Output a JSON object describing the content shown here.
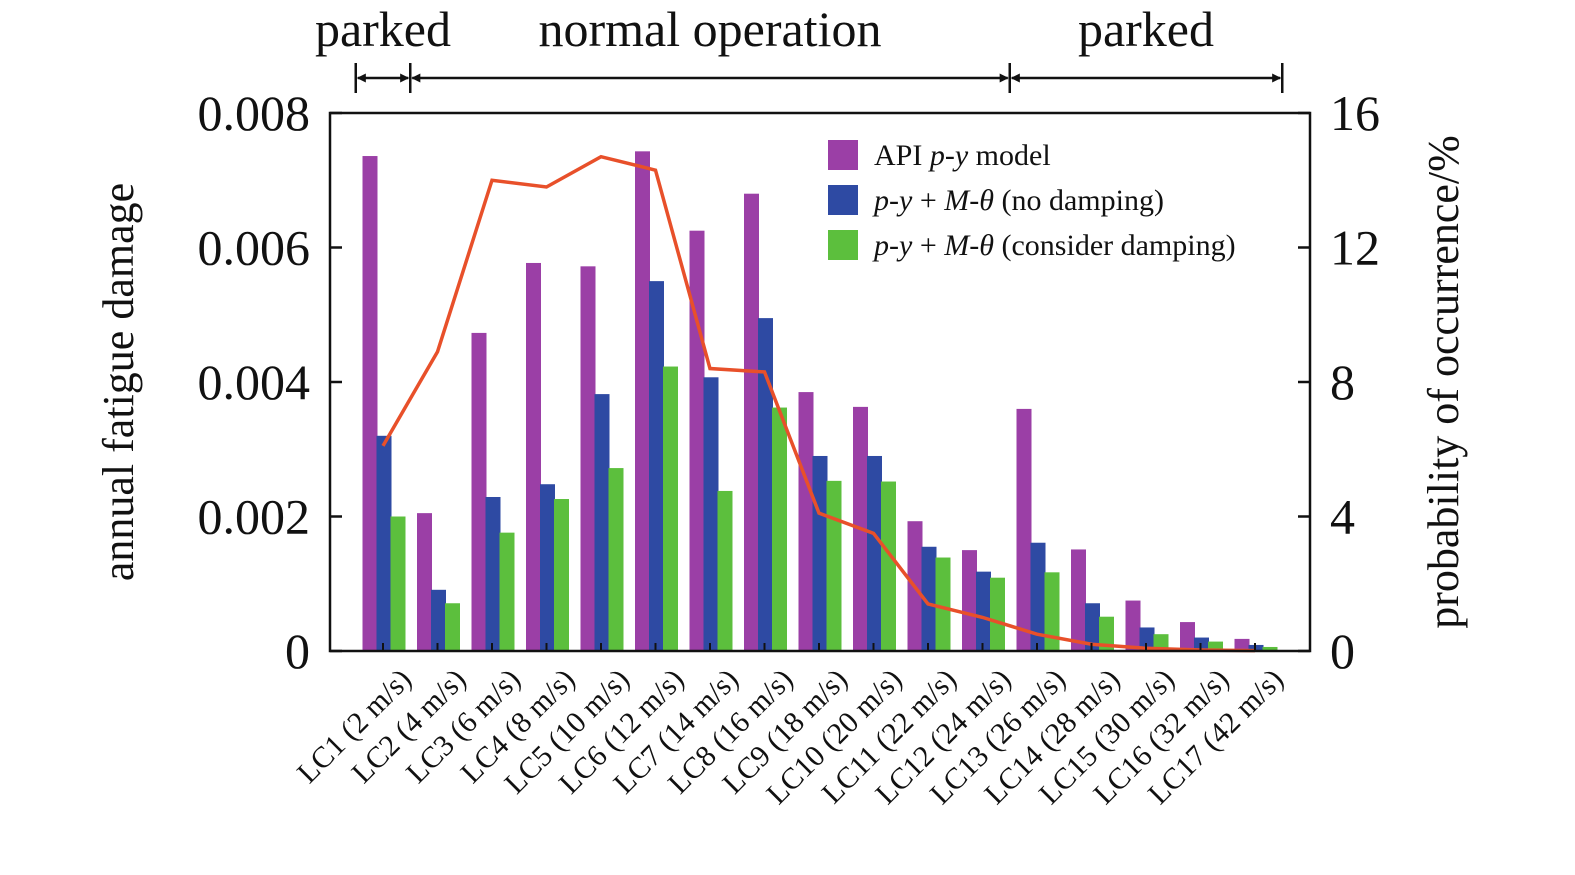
{
  "chart_data": {
    "type": "bar",
    "title": "",
    "regions": [
      {
        "label": "parked",
        "from": 1,
        "to": 2
      },
      {
        "label": "normal operation",
        "from": 2,
        "to": 13
      },
      {
        "label": "parked",
        "from": 13,
        "to": 18
      }
    ],
    "categories": [
      "LC1 (2 m/s)",
      "LC2 (4 m/s)",
      "LC3 (6 m/s)",
      "LC4 (8 m/s)",
      "LC5 (10 m/s)",
      "LC6 (12 m/s)",
      "LC7 (14 m/s)",
      "LC8 (16 m/s)",
      "LC9 (18 m/s)",
      "LC10 (20 m/s)",
      "LC11 (22 m/s)",
      "LC12 (24 m/s)",
      "LC13 (26 m/s)",
      "LC14 (28 m/s)",
      "LC15 (30 m/s)",
      "LC16 (32 m/s)",
      "LC17 (42 m/s)"
    ],
    "ylabel": "annual fatigue damage",
    "ylim": [
      0,
      0.008
    ],
    "yticks": [
      "0",
      "0.002",
      "0.004",
      "0.006",
      "0.008"
    ],
    "y2label": "probability of occurrence/%",
    "y2lim": [
      0,
      16
    ],
    "y2ticks": [
      "0",
      "4",
      "8",
      "12",
      "16"
    ],
    "series": [
      {
        "name": "API p-y model",
        "legend_parts": [
          {
            "t": "API ",
            "i": false
          },
          {
            "t": "p",
            "i": true
          },
          {
            "t": "-",
            "i": false
          },
          {
            "t": "y",
            "i": true
          },
          {
            "t": " model",
            "i": false
          }
        ],
        "color": "#9b3fa6",
        "values": [
          0.00736,
          0.00205,
          0.00473,
          0.00577,
          0.00572,
          0.00743,
          0.00625,
          0.0068,
          0.00385,
          0.00363,
          0.00193,
          0.0015,
          0.0036,
          0.00151,
          0.00075,
          0.00043,
          0.00018
        ]
      },
      {
        "name": "p-y + M-θ (no damping)",
        "legend_parts": [
          {
            "t": "p",
            "i": true
          },
          {
            "t": "-",
            "i": false
          },
          {
            "t": "y",
            "i": true
          },
          {
            "t": " + ",
            "i": false
          },
          {
            "t": "M",
            "i": true
          },
          {
            "t": "-",
            "i": false
          },
          {
            "t": "θ",
            "i": true
          },
          {
            "t": " (no damping)",
            "i": false
          }
        ],
        "color": "#2e4aa3",
        "values": [
          0.0032,
          0.00091,
          0.00229,
          0.00248,
          0.00382,
          0.0055,
          0.00407,
          0.00495,
          0.0029,
          0.0029,
          0.00155,
          0.00118,
          0.00161,
          0.00071,
          0.00035,
          0.0002,
          9e-05
        ]
      },
      {
        "name": "p-y + M-θ (consider damping)",
        "legend_parts": [
          {
            "t": "p",
            "i": true
          },
          {
            "t": "-",
            "i": false
          },
          {
            "t": "y",
            "i": true
          },
          {
            "t": " + ",
            "i": false
          },
          {
            "t": "M",
            "i": true
          },
          {
            "t": "-",
            "i": false
          },
          {
            "t": "θ",
            "i": true
          },
          {
            "t": " (consider damping)",
            "i": false
          }
        ],
        "color": "#5cbf3d",
        "values": [
          0.002,
          0.00071,
          0.00176,
          0.00226,
          0.00272,
          0.00423,
          0.00238,
          0.00362,
          0.00253,
          0.00252,
          0.00139,
          0.00109,
          0.00117,
          0.00051,
          0.00025,
          0.00014,
          6e-05
        ]
      }
    ],
    "line": {
      "axis": "right",
      "color": "#e8502a",
      "values": [
        6.1,
        8.9,
        14.0,
        13.8,
        14.7,
        14.3,
        8.4,
        8.3,
        4.1,
        3.5,
        1.4,
        1.0,
        0.5,
        0.2,
        0.08,
        0.03,
        0.01
      ]
    },
    "legend_position": "top-right",
    "grid": false
  }
}
